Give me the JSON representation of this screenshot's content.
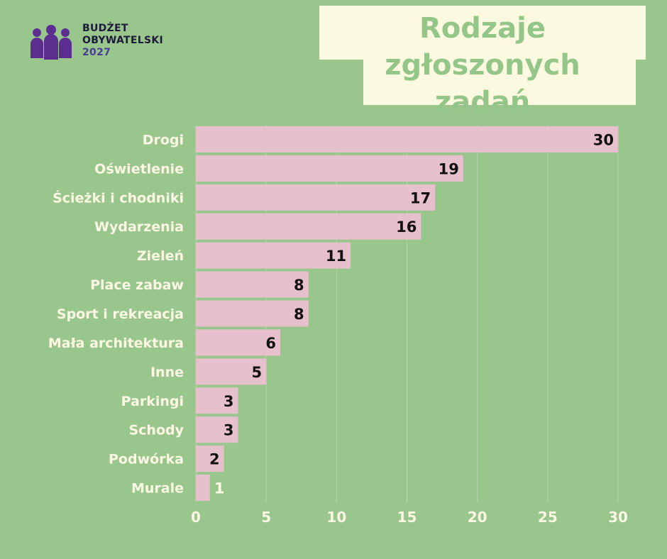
{
  "logo": {
    "icon": "people-group-icon",
    "line1": "BUDŻET",
    "line2": "OBYWATELSKI",
    "year": "2027"
  },
  "colors": {
    "background": "#99c68d",
    "bar": "#e6c0cc",
    "title_box": "#fcf9e1",
    "title_text": "#95c689",
    "label_text": "#fcf8e3",
    "value_text": "#111111",
    "logo_icon": "#5b2d8e"
  },
  "chart_data": {
    "type": "bar",
    "orientation": "horizontal",
    "title_lines": [
      "Rodzaje zgłoszonych",
      "zadań"
    ],
    "categories": [
      "Drogi",
      "Oświetlenie",
      "Ścieżki i chodniki",
      "Wydarzenia",
      "Zieleń",
      "Place zabaw",
      "Sport i rekreacja",
      "Mała architektura",
      "Inne",
      "Parkingi",
      "Schody",
      "Podwórka",
      "Murale"
    ],
    "values": [
      30,
      19,
      17,
      16,
      11,
      8,
      8,
      6,
      5,
      3,
      3,
      2,
      1
    ],
    "xticks": [
      0,
      5,
      10,
      15,
      20,
      25,
      30
    ],
    "xlim": [
      0,
      30
    ],
    "grid": true,
    "xlabel": "",
    "ylabel": ""
  }
}
